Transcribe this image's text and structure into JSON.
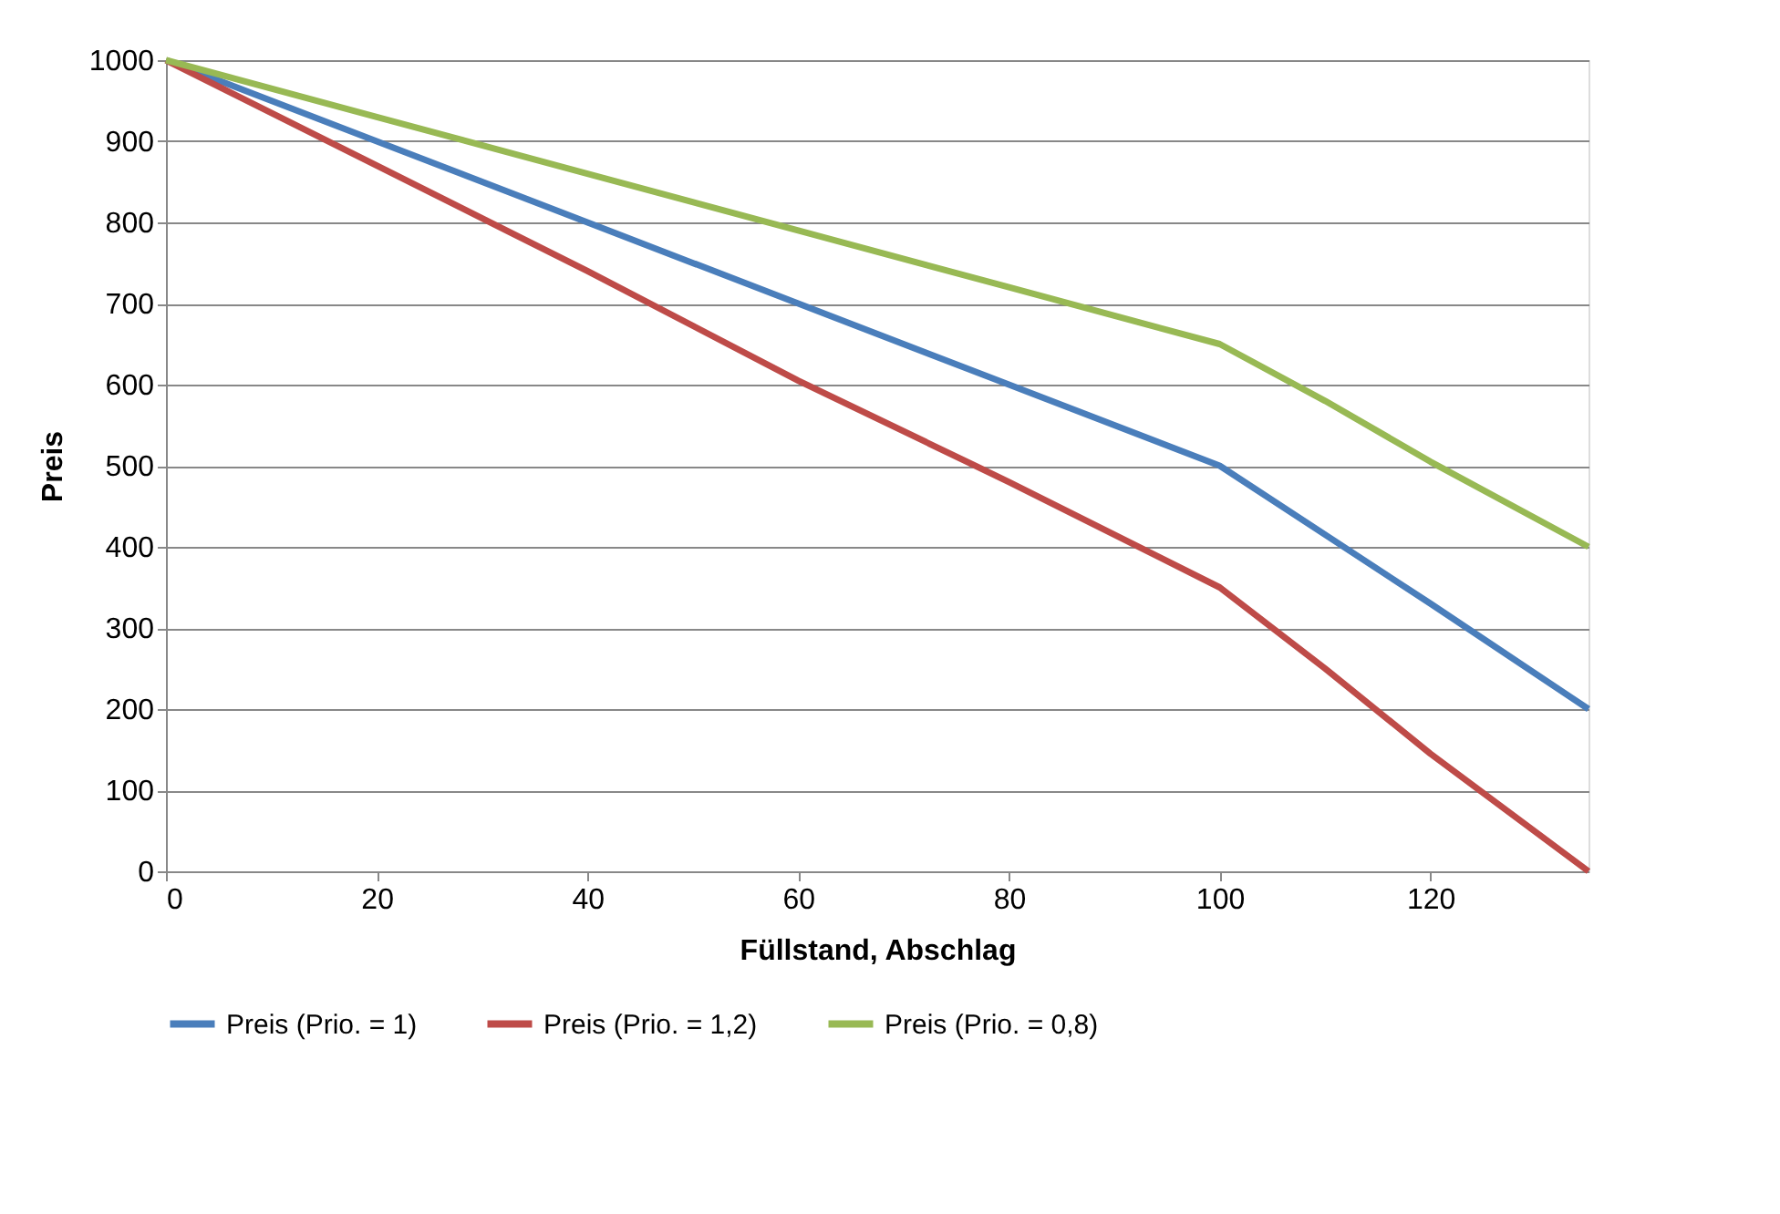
{
  "chart_data": {
    "type": "line",
    "xlabel": "Füllstand, Abschlag",
    "ylabel": "Preis",
    "xlim": [
      0,
      135
    ],
    "xticks": [
      0,
      20,
      40,
      60,
      80,
      100,
      120
    ],
    "ylim": [
      0,
      1000
    ],
    "yticks": [
      0,
      100,
      200,
      300,
      400,
      500,
      600,
      700,
      800,
      900,
      1000
    ],
    "grid": "y",
    "legend": "bottom",
    "line_style": "solid",
    "marker": "none",
    "x": [
      0,
      20,
      40,
      60,
      80,
      100,
      110,
      120,
      135
    ],
    "series": [
      {
        "name": "Preis (Prio. = 1)",
        "color": "#4a7ebb",
        "values": [
          1000,
          900,
          800,
          700,
          600,
          500,
          415,
          330,
          200
        ]
      },
      {
        "name": "Preis (Prio. = 1,2)",
        "color": "#be4b48",
        "values": [
          1000,
          870,
          740,
          605,
          480,
          350,
          250,
          145,
          0
        ]
      },
      {
        "name": "Preis (Prio. = 0,8)",
        "color": "#98b954",
        "values": [
          1000,
          930,
          860,
          790,
          720,
          650,
          580,
          505,
          400
        ]
      }
    ]
  }
}
